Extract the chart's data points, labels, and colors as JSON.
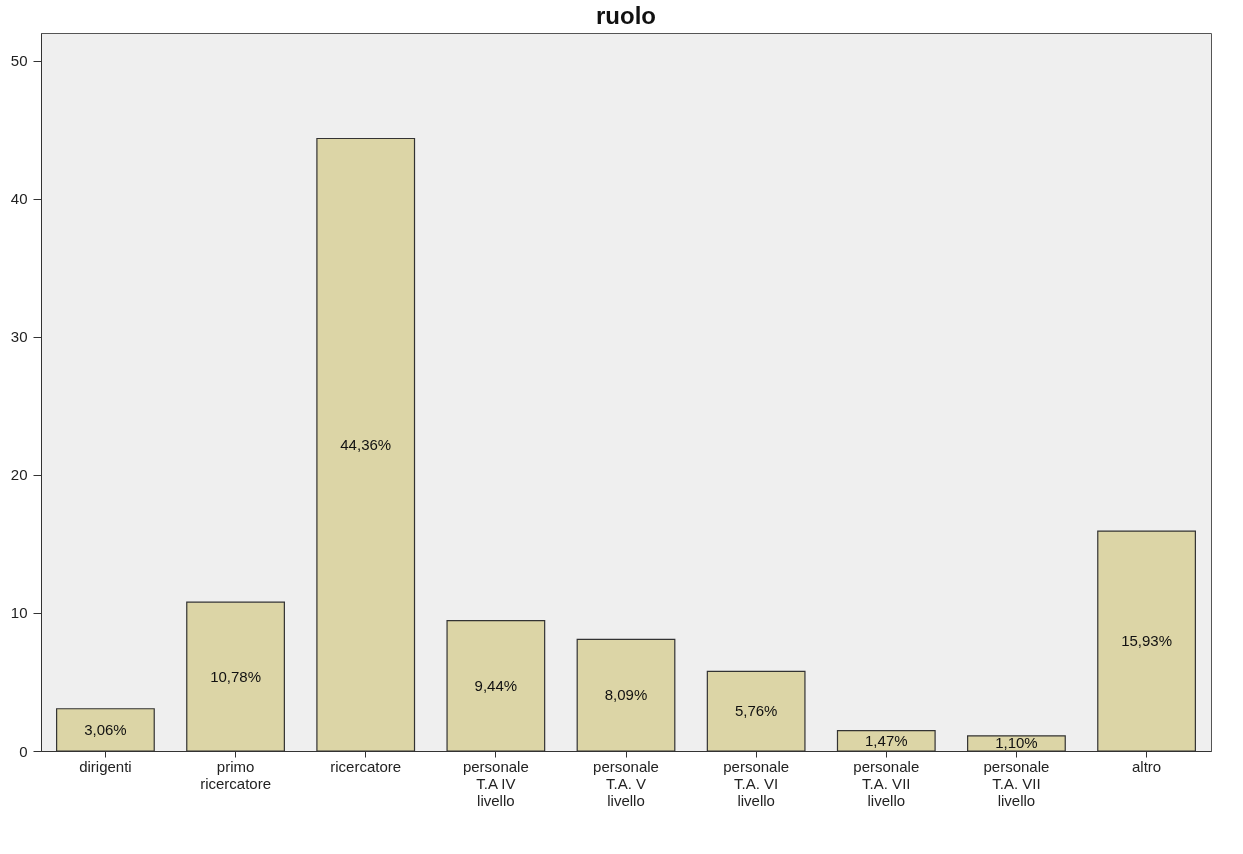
{
  "chart_data": {
    "type": "bar",
    "title": "ruolo",
    "categories": [
      "dirigenti",
      "primo\nricercatore",
      "ricercatore",
      "personale\nT.A IV\nlivello",
      "personale\nT.A. V\nlivello",
      "personale\nT.A. VI\nlivello",
      "personale\nT.A. VII\nlivello",
      "personale\nT.A. VII\nlivello",
      "altro"
    ],
    "values": [
      3.06,
      10.78,
      44.36,
      9.44,
      8.09,
      5.76,
      1.47,
      1.1,
      15.93
    ],
    "value_labels": [
      "3,06%",
      "10,78%",
      "44,36%",
      "9,44%",
      "8,09%",
      "5,76%",
      "1,47%",
      "1,10%",
      "15,93%"
    ],
    "color": "#dcd5a6",
    "ylim": [
      0,
      52
    ],
    "yticks": [
      0,
      10,
      20,
      30,
      40,
      50
    ],
    "grid": false
  }
}
